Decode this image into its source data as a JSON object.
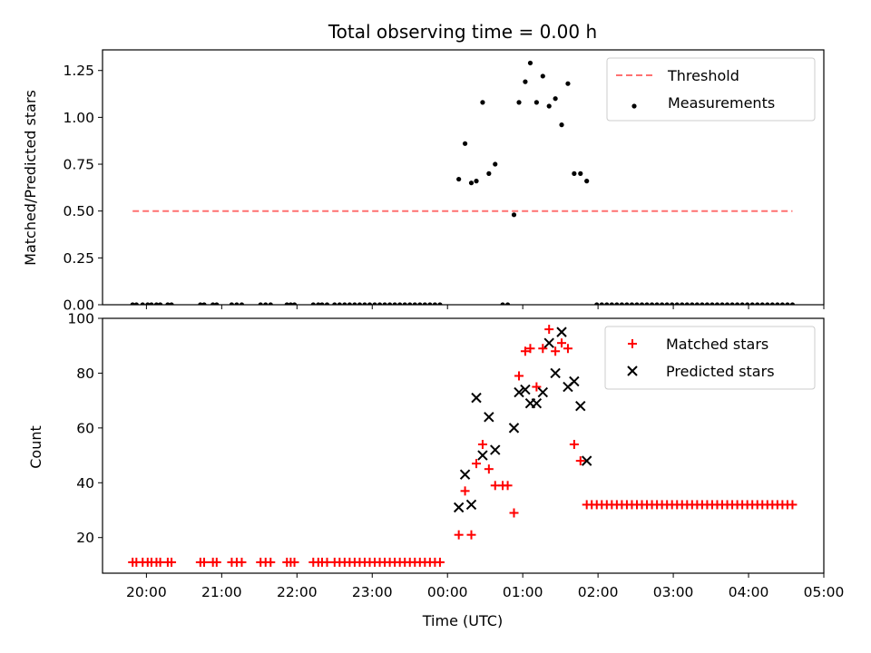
{
  "title": "Total observing time = 0.00 h",
  "chart_data": [
    {
      "type": "scatter",
      "ylabel": "Matched/Predicted stars",
      "ylim": [
        0,
        1.36
      ],
      "yticks": [
        0,
        0.25,
        0.5,
        0.75,
        1.0,
        1.25
      ],
      "ytick_labels": [
        "0.00",
        "0.25",
        "0.50",
        "0.75",
        "1.00",
        "1.25"
      ],
      "xlim": [
        "19:25",
        "05:00"
      ],
      "legend_placement": "upper right",
      "series": [
        {
          "name": "Threshold",
          "kind": "dashed-line",
          "color": "#ff7070",
          "points": [
            [
              "19:49",
              0.5
            ],
            [
              "04:35",
              0.5
            ]
          ]
        },
        {
          "name": "Measurements",
          "kind": "dots",
          "color": "#000000",
          "points": [
            [
              "19:49",
              0
            ],
            [
              "19:52",
              0
            ],
            [
              "19:57",
              0
            ],
            [
              "20:01",
              0
            ],
            [
              "20:04",
              0
            ],
            [
              "20:08",
              0
            ],
            [
              "20:11",
              0
            ],
            [
              "20:17",
              0
            ],
            [
              "20:20",
              0
            ],
            [
              "20:43",
              0
            ],
            [
              "20:46",
              0
            ],
            [
              "20:53",
              0
            ],
            [
              "20:56",
              0
            ],
            [
              "21:08",
              0
            ],
            [
              "21:12",
              0
            ],
            [
              "21:16",
              0
            ],
            [
              "21:31",
              0
            ],
            [
              "21:35",
              0
            ],
            [
              "21:39",
              0
            ],
            [
              "21:52",
              0
            ],
            [
              "21:55",
              0
            ],
            [
              "21:58",
              0
            ],
            [
              "22:13",
              0
            ],
            [
              "22:17",
              0
            ],
            [
              "22:20",
              0
            ],
            [
              "22:24",
              0
            ],
            [
              "22:30",
              0
            ],
            [
              "22:34",
              0
            ],
            [
              "22:38",
              0
            ],
            [
              "22:42",
              0
            ],
            [
              "22:46",
              0
            ],
            [
              "22:50",
              0
            ],
            [
              "22:54",
              0
            ],
            [
              "22:58",
              0
            ],
            [
              "23:02",
              0
            ],
            [
              "23:06",
              0
            ],
            [
              "23:10",
              0
            ],
            [
              "23:14",
              0
            ],
            [
              "23:18",
              0
            ],
            [
              "23:22",
              0
            ],
            [
              "23:26",
              0
            ],
            [
              "23:30",
              0
            ],
            [
              "23:34",
              0
            ],
            [
              "23:38",
              0
            ],
            [
              "23:42",
              0
            ],
            [
              "23:46",
              0
            ],
            [
              "23:50",
              0
            ],
            [
              "23:54",
              0
            ],
            [
              "00:09",
              0.67
            ],
            [
              "00:14",
              0.86
            ],
            [
              "00:19",
              0.65
            ],
            [
              "00:23",
              0.66
            ],
            [
              "00:28",
              1.08
            ],
            [
              "00:33",
              0.7
            ],
            [
              "00:38",
              0.75
            ],
            [
              "00:44",
              0
            ],
            [
              "00:48",
              0
            ],
            [
              "00:53",
              0.48
            ],
            [
              "00:57",
              1.08
            ],
            [
              "01:02",
              1.19
            ],
            [
              "01:06",
              1.29
            ],
            [
              "01:11",
              1.08
            ],
            [
              "01:16",
              1.22
            ],
            [
              "01:21",
              1.06
            ],
            [
              "01:26",
              1.1
            ],
            [
              "01:31",
              0.96
            ],
            [
              "01:36",
              1.18
            ],
            [
              "01:41",
              0.7
            ],
            [
              "01:46",
              0.7
            ],
            [
              "01:51",
              0.66
            ],
            [
              "01:59",
              0
            ],
            [
              "02:03",
              0
            ],
            [
              "02:07",
              0
            ],
            [
              "02:11",
              0
            ],
            [
              "02:15",
              0
            ],
            [
              "02:19",
              0
            ],
            [
              "02:23",
              0
            ],
            [
              "02:27",
              0
            ],
            [
              "02:31",
              0
            ],
            [
              "02:35",
              0
            ],
            [
              "02:39",
              0
            ],
            [
              "02:43",
              0
            ],
            [
              "02:47",
              0
            ],
            [
              "02:51",
              0
            ],
            [
              "02:55",
              0
            ],
            [
              "02:59",
              0
            ],
            [
              "03:03",
              0
            ],
            [
              "03:07",
              0
            ],
            [
              "03:11",
              0
            ],
            [
              "03:15",
              0
            ],
            [
              "03:19",
              0
            ],
            [
              "03:23",
              0
            ],
            [
              "03:27",
              0
            ],
            [
              "03:31",
              0
            ],
            [
              "03:35",
              0
            ],
            [
              "03:39",
              0
            ],
            [
              "03:43",
              0
            ],
            [
              "03:47",
              0
            ],
            [
              "03:51",
              0
            ],
            [
              "03:55",
              0
            ],
            [
              "03:59",
              0
            ],
            [
              "04:03",
              0
            ],
            [
              "04:07",
              0
            ],
            [
              "04:11",
              0
            ],
            [
              "04:15",
              0
            ],
            [
              "04:19",
              0
            ],
            [
              "04:23",
              0
            ],
            [
              "04:27",
              0
            ],
            [
              "04:31",
              0
            ],
            [
              "04:35",
              0
            ]
          ]
        }
      ]
    },
    {
      "type": "scatter",
      "ylabel": "Count",
      "xlabel": "Time (UTC)",
      "ylim": [
        7,
        100
      ],
      "yticks": [
        20,
        40,
        60,
        80,
        100
      ],
      "ytick_labels": [
        "20",
        "40",
        "60",
        "80",
        "100"
      ],
      "xlim": [
        "19:25",
        "05:00"
      ],
      "xticks": [
        "20:00",
        "21:00",
        "22:00",
        "23:00",
        "00:00",
        "01:00",
        "02:00",
        "03:00",
        "04:00",
        "05:00"
      ],
      "legend_placement": "upper right",
      "series": [
        {
          "name": "Matched stars",
          "marker": "plus",
          "color": "#ff0000",
          "points": [
            [
              "19:49",
              11
            ],
            [
              "19:52",
              11
            ],
            [
              "19:57",
              11
            ],
            [
              "20:01",
              11
            ],
            [
              "20:04",
              11
            ],
            [
              "20:08",
              11
            ],
            [
              "20:11",
              11
            ],
            [
              "20:17",
              11
            ],
            [
              "20:20",
              11
            ],
            [
              "20:43",
              11
            ],
            [
              "20:46",
              11
            ],
            [
              "20:53",
              11
            ],
            [
              "20:56",
              11
            ],
            [
              "21:08",
              11
            ],
            [
              "21:12",
              11
            ],
            [
              "21:16",
              11
            ],
            [
              "21:31",
              11
            ],
            [
              "21:35",
              11
            ],
            [
              "21:39",
              11
            ],
            [
              "21:52",
              11
            ],
            [
              "21:55",
              11
            ],
            [
              "21:58",
              11
            ],
            [
              "22:13",
              11
            ],
            [
              "22:17",
              11
            ],
            [
              "22:20",
              11
            ],
            [
              "22:24",
              11
            ],
            [
              "22:30",
              11
            ],
            [
              "22:34",
              11
            ],
            [
              "22:38",
              11
            ],
            [
              "22:42",
              11
            ],
            [
              "22:46",
              11
            ],
            [
              "22:50",
              11
            ],
            [
              "22:54",
              11
            ],
            [
              "22:58",
              11
            ],
            [
              "23:02",
              11
            ],
            [
              "23:06",
              11
            ],
            [
              "23:10",
              11
            ],
            [
              "23:14",
              11
            ],
            [
              "23:18",
              11
            ],
            [
              "23:22",
              11
            ],
            [
              "23:26",
              11
            ],
            [
              "23:30",
              11
            ],
            [
              "23:34",
              11
            ],
            [
              "23:38",
              11
            ],
            [
              "23:42",
              11
            ],
            [
              "23:46",
              11
            ],
            [
              "23:50",
              11
            ],
            [
              "23:54",
              11
            ],
            [
              "00:09",
              21
            ],
            [
              "00:14",
              37
            ],
            [
              "00:19",
              21
            ],
            [
              "00:23",
              47
            ],
            [
              "00:28",
              54
            ],
            [
              "00:33",
              45
            ],
            [
              "00:38",
              39
            ],
            [
              "00:44",
              39
            ],
            [
              "00:48",
              39
            ],
            [
              "00:53",
              29
            ],
            [
              "00:57",
              79
            ],
            [
              "01:02",
              88
            ],
            [
              "01:06",
              89
            ],
            [
              "01:11",
              75
            ],
            [
              "01:16",
              89
            ],
            [
              "01:21",
              96
            ],
            [
              "01:26",
              88
            ],
            [
              "01:31",
              91
            ],
            [
              "01:36",
              89
            ],
            [
              "01:41",
              54
            ],
            [
              "01:46",
              48
            ],
            [
              "01:51",
              32
            ],
            [
              "01:55",
              32
            ],
            [
              "01:59",
              32
            ],
            [
              "02:03",
              32
            ],
            [
              "02:07",
              32
            ],
            [
              "02:11",
              32
            ],
            [
              "02:15",
              32
            ],
            [
              "02:19",
              32
            ],
            [
              "02:23",
              32
            ],
            [
              "02:27",
              32
            ],
            [
              "02:31",
              32
            ],
            [
              "02:35",
              32
            ],
            [
              "02:39",
              32
            ],
            [
              "02:43",
              32
            ],
            [
              "02:47",
              32
            ],
            [
              "02:51",
              32
            ],
            [
              "02:55",
              32
            ],
            [
              "02:59",
              32
            ],
            [
              "03:03",
              32
            ],
            [
              "03:07",
              32
            ],
            [
              "03:11",
              32
            ],
            [
              "03:15",
              32
            ],
            [
              "03:19",
              32
            ],
            [
              "03:23",
              32
            ],
            [
              "03:27",
              32
            ],
            [
              "03:31",
              32
            ],
            [
              "03:35",
              32
            ],
            [
              "03:39",
              32
            ],
            [
              "03:43",
              32
            ],
            [
              "03:47",
              32
            ],
            [
              "03:51",
              32
            ],
            [
              "03:55",
              32
            ],
            [
              "03:59",
              32
            ],
            [
              "04:03",
              32
            ],
            [
              "04:07",
              32
            ],
            [
              "04:11",
              32
            ],
            [
              "04:15",
              32
            ],
            [
              "04:19",
              32
            ],
            [
              "04:23",
              32
            ],
            [
              "04:27",
              32
            ],
            [
              "04:31",
              32
            ],
            [
              "04:35",
              32
            ]
          ]
        },
        {
          "name": "Predicted stars",
          "marker": "x",
          "color": "#000000",
          "points": [
            [
              "00:09",
              31
            ],
            [
              "00:14",
              43
            ],
            [
              "00:19",
              32
            ],
            [
              "00:23",
              71
            ],
            [
              "00:28",
              50
            ],
            [
              "00:33",
              64
            ],
            [
              "00:38",
              52
            ],
            [
              "00:53",
              60
            ],
            [
              "00:57",
              73
            ],
            [
              "01:02",
              74
            ],
            [
              "01:06",
              69
            ],
            [
              "01:11",
              69
            ],
            [
              "01:16",
              73
            ],
            [
              "01:21",
              91
            ],
            [
              "01:26",
              80
            ],
            [
              "01:31",
              95
            ],
            [
              "01:36",
              75
            ],
            [
              "01:41",
              77
            ],
            [
              "01:46",
              68
            ],
            [
              "01:51",
              48
            ]
          ]
        }
      ]
    }
  ]
}
